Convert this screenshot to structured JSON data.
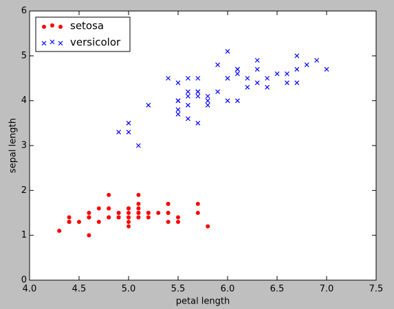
{
  "chart_data": {
    "type": "scatter",
    "xlabel": "petal length",
    "ylabel": "sepal length",
    "xlim": [
      4.0,
      7.5
    ],
    "xticks": [
      {
        "value": 4.0,
        "label": "4.0"
      },
      {
        "value": 4.5,
        "label": "4.5"
      },
      {
        "value": 5.0,
        "label": "5.0"
      },
      {
        "value": 5.5,
        "label": "5.5"
      },
      {
        "value": 6.0,
        "label": "6.0"
      },
      {
        "value": 6.5,
        "label": "6.5"
      },
      {
        "value": 7.0,
        "label": "7.0"
      },
      {
        "value": 7.5,
        "label": "7.5"
      }
    ],
    "ylim": [
      0,
      6
    ],
    "yticks": [
      0,
      1,
      2,
      3,
      4,
      5,
      6
    ],
    "legend": "upper left",
    "series": [
      {
        "name": "setosa",
        "color": "#ff0000",
        "marker": "o",
        "x": [
          5.1,
          4.9,
          4.7,
          4.6,
          5.0,
          5.4,
          4.6,
          5.0,
          4.4,
          4.9,
          5.4,
          4.8,
          4.8,
          4.3,
          5.8,
          5.7,
          5.4,
          5.1,
          5.7,
          5.1,
          5.4,
          5.1,
          4.6,
          5.1,
          4.8,
          5.0,
          5.0,
          5.2,
          5.2,
          4.7,
          4.8,
          5.4,
          5.2,
          5.5,
          4.9,
          5.0,
          5.5,
          4.9,
          4.4,
          5.1,
          5.0,
          4.5,
          4.4,
          5.0,
          5.1,
          4.8,
          5.1,
          4.6,
          5.3,
          5.0
        ],
        "values": [
          1.4,
          1.4,
          1.3,
          1.5,
          1.4,
          1.7,
          1.4,
          1.5,
          1.4,
          1.5,
          1.5,
          1.6,
          1.4,
          1.1,
          1.2,
          1.5,
          1.3,
          1.4,
          1.7,
          1.5,
          1.7,
          1.5,
          1.0,
          1.7,
          1.9,
          1.6,
          1.6,
          1.5,
          1.4,
          1.6,
          1.6,
          1.5,
          1.5,
          1.4,
          1.5,
          1.2,
          1.3,
          1.4,
          1.3,
          1.5,
          1.3,
          1.3,
          1.3,
          1.6,
          1.9,
          1.4,
          1.6,
          1.4,
          1.5,
          1.4
        ]
      },
      {
        "name": "versicolor",
        "color": "#0000ff",
        "marker": "x",
        "x": [
          7.0,
          6.4,
          6.9,
          5.5,
          6.5,
          5.7,
          6.3,
          4.9,
          6.6,
          5.2,
          5.0,
          5.9,
          6.0,
          6.1,
          5.6,
          6.7,
          5.6,
          5.8,
          6.2,
          5.6,
          5.9,
          6.1,
          6.3,
          6.1,
          6.4,
          6.6,
          6.8,
          6.7,
          6.0,
          5.7,
          5.5,
          5.5,
          5.8,
          6.0,
          5.4,
          6.0,
          6.7,
          6.3,
          5.6,
          5.5,
          5.5,
          6.1,
          5.8,
          5.0,
          5.6,
          5.7,
          5.7,
          6.2,
          5.1,
          5.7
        ],
        "values": [
          4.7,
          4.5,
          4.9,
          4.0,
          4.6,
          4.5,
          4.7,
          3.3,
          4.6,
          3.9,
          3.5,
          4.2,
          4.0,
          4.7,
          3.6,
          4.4,
          4.5,
          4.1,
          4.5,
          3.9,
          4.8,
          4.0,
          4.9,
          4.7,
          4.3,
          4.4,
          4.8,
          5.0,
          4.5,
          3.5,
          3.8,
          3.7,
          3.9,
          5.1,
          4.5,
          4.5,
          4.7,
          4.4,
          4.1,
          4.0,
          4.4,
          4.6,
          4.0,
          3.3,
          4.2,
          4.2,
          4.2,
          4.3,
          3.0,
          4.1
        ]
      }
    ]
  }
}
